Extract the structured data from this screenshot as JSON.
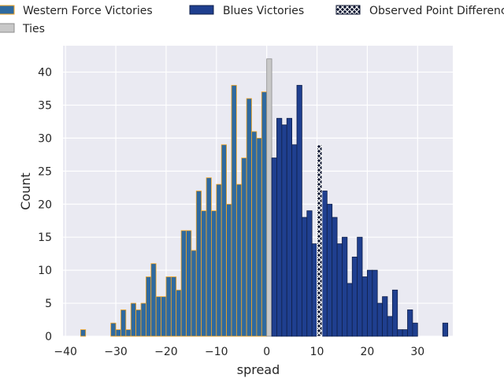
{
  "chart_data": {
    "type": "bar",
    "subtype": "histogram",
    "xlabel": "spread",
    "ylabel": "Count",
    "xlim": [
      -40.5,
      37
    ],
    "ylim": [
      0,
      44
    ],
    "xticks": [
      -40,
      -30,
      -20,
      -10,
      0,
      10,
      20,
      30
    ],
    "yticks": [
      0,
      5,
      10,
      15,
      20,
      25,
      30,
      35,
      40
    ],
    "grid": true,
    "legend": {
      "placement": "top",
      "entries": [
        {
          "label": "Western Force Victories",
          "color": "#2f6a9f",
          "edge": "#f5a623"
        },
        {
          "label": "Blues Victories",
          "color": "#1f3f8f",
          "edge": "#10204a"
        },
        {
          "label": "Observed Point Difference",
          "color": "#0d1530",
          "edge": "#ffffff",
          "hatch": true
        },
        {
          "label": "Ties",
          "color": "#c8c8c8",
          "edge": "#8c8c8c"
        }
      ]
    },
    "series": [
      {
        "name": "Western Force Victories",
        "color": "#2f6a9f",
        "edge": "#f5a623",
        "x": [
          -37,
          -31,
          -30,
          -29,
          -28,
          -27,
          -26,
          -25,
          -24,
          -23,
          -22,
          -21,
          -20,
          -19,
          -18,
          -17,
          -16,
          -15,
          -14,
          -13,
          -12,
          -11,
          -10,
          -9,
          -8,
          -7,
          -6,
          -5,
          -4,
          -3,
          -2,
          -1
        ],
        "values": [
          1,
          2,
          1,
          4,
          1,
          5,
          4,
          5,
          9,
          11,
          6,
          6,
          9,
          9,
          7,
          16,
          16,
          13,
          22,
          19,
          24,
          19,
          23,
          29,
          20,
          38,
          23,
          27,
          36,
          31,
          30,
          37
        ]
      },
      {
        "name": "Ties",
        "color": "#c8c8c8",
        "edge": "#8c8c8c",
        "x": [
          0
        ],
        "values": [
          42
        ]
      },
      {
        "name": "Blues Victories",
        "color": "#1f3f8f",
        "edge": "#10204a",
        "x": [
          1,
          2,
          3,
          4,
          5,
          6,
          7,
          8,
          9,
          11,
          12,
          13,
          14,
          15,
          16,
          17,
          18,
          19,
          20,
          21,
          22,
          23,
          24,
          25,
          26,
          27,
          28,
          29,
          35
        ],
        "values": [
          27,
          33,
          32,
          33,
          29,
          38,
          18,
          19,
          14,
          22,
          20,
          18,
          14,
          15,
          8,
          12,
          15,
          9,
          10,
          10,
          5,
          6,
          3,
          7,
          1,
          1,
          4,
          2,
          2
        ]
      },
      {
        "name": "Observed Point Difference",
        "color": "#0d1530",
        "edge": "#ffffff",
        "hatch": true,
        "x": [
          10
        ],
        "values": [
          29
        ]
      }
    ]
  }
}
